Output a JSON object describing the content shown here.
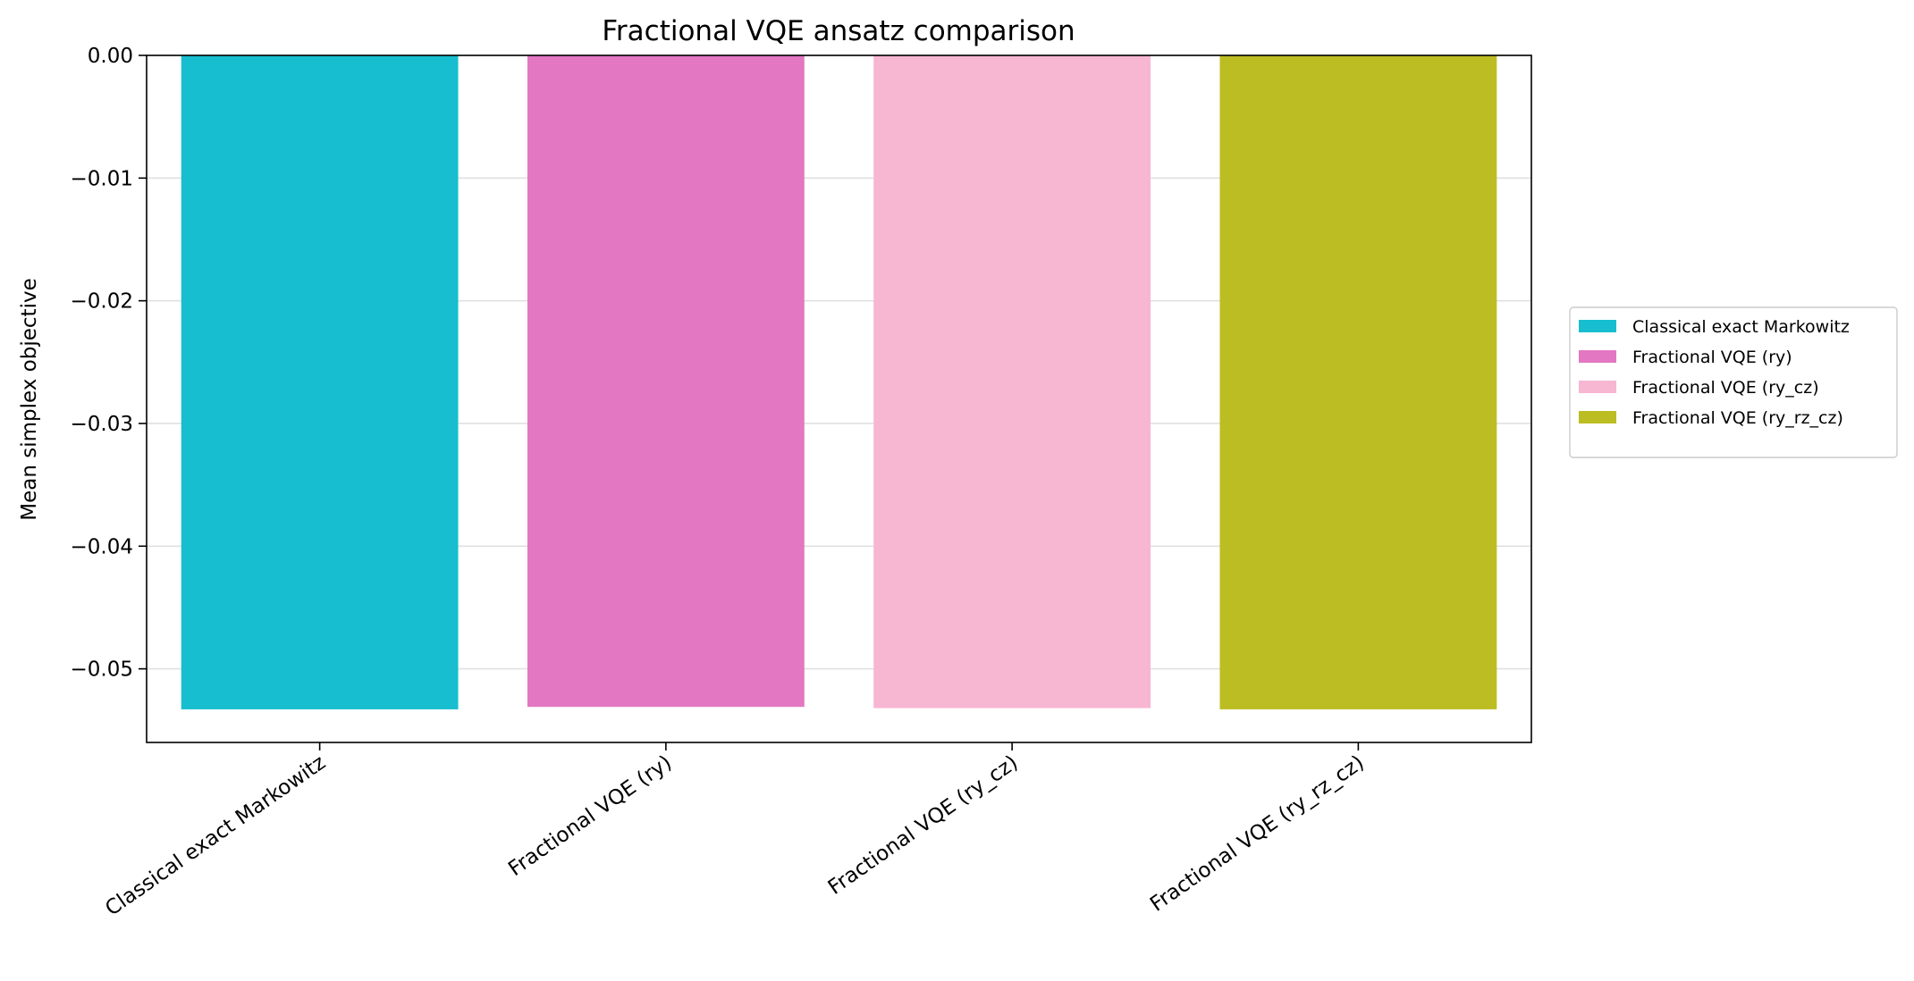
{
  "chart_data": {
    "type": "bar",
    "title": "Fractional VQE ansatz comparison",
    "xlabel": "",
    "ylabel": "Mean simplex objective",
    "categories": [
      "Classical exact Markowitz",
      "Fractional VQE (ry)",
      "Fractional VQE (ry_cz)",
      "Fractional VQE (ry_rz_cz)"
    ],
    "values": [
      -0.0533,
      -0.0531,
      -0.0532,
      -0.0533
    ],
    "colors": [
      "#17becf",
      "#e377c2",
      "#f7b6d2",
      "#bcbd22"
    ],
    "ylim": [
      -0.056,
      0.0
    ],
    "yticks": [
      0.0,
      -0.01,
      -0.02,
      -0.03,
      -0.04,
      -0.05
    ],
    "ytick_labels": [
      "0.00",
      "−0.01",
      "−0.02",
      "−0.03",
      "−0.04",
      "−0.05"
    ],
    "grid": "y",
    "legend": {
      "placement": "outside-right",
      "entries": [
        {
          "label": "Classical exact Markowitz",
          "color": "#17becf"
        },
        {
          "label": "Fractional VQE (ry)",
          "color": "#e377c2"
        },
        {
          "label": "Fractional VQE (ry_cz)",
          "color": "#f7b6d2"
        },
        {
          "label": "Fractional VQE (ry_rz_cz)",
          "color": "#bcbd22"
        }
      ]
    }
  }
}
